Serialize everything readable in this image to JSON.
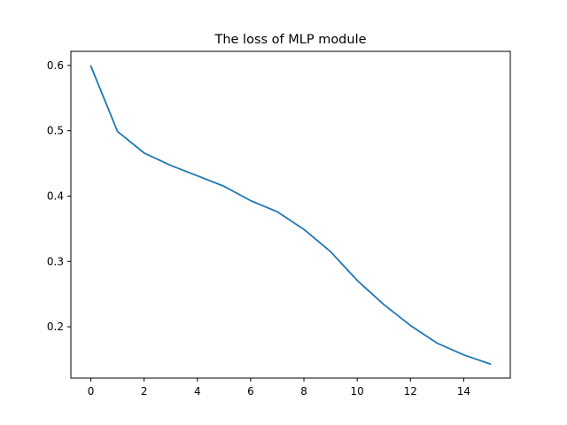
{
  "chart_data": {
    "type": "line",
    "title": "The loss of MLP module",
    "xlabel": "",
    "ylabel": "",
    "xlim": [
      -0.75,
      15.75
    ],
    "ylim": [
      0.1215,
      0.6215
    ],
    "x_ticks": [
      0,
      2,
      4,
      6,
      8,
      10,
      12,
      14
    ],
    "y_ticks": [
      0.2,
      0.3,
      0.4,
      0.5,
      0.6
    ],
    "x_tick_labels": [
      "0",
      "2",
      "4",
      "6",
      "8",
      "10",
      "12",
      "14"
    ],
    "y_tick_labels": [
      "0.2",
      "0.3",
      "0.4",
      "0.5",
      "0.6"
    ],
    "grid": false,
    "legend": "none",
    "series": [
      {
        "color": "#1f77b4",
        "x": [
          0,
          1,
          2,
          3,
          4,
          5,
          6,
          7,
          8,
          9,
          10,
          11,
          12,
          13,
          14,
          15
        ],
        "y": [
          0.599,
          0.499,
          0.466,
          0.447,
          0.431,
          0.415,
          0.393,
          0.376,
          0.349,
          0.315,
          0.271,
          0.234,
          0.202,
          0.175,
          0.157,
          0.143
        ]
      }
    ]
  }
}
